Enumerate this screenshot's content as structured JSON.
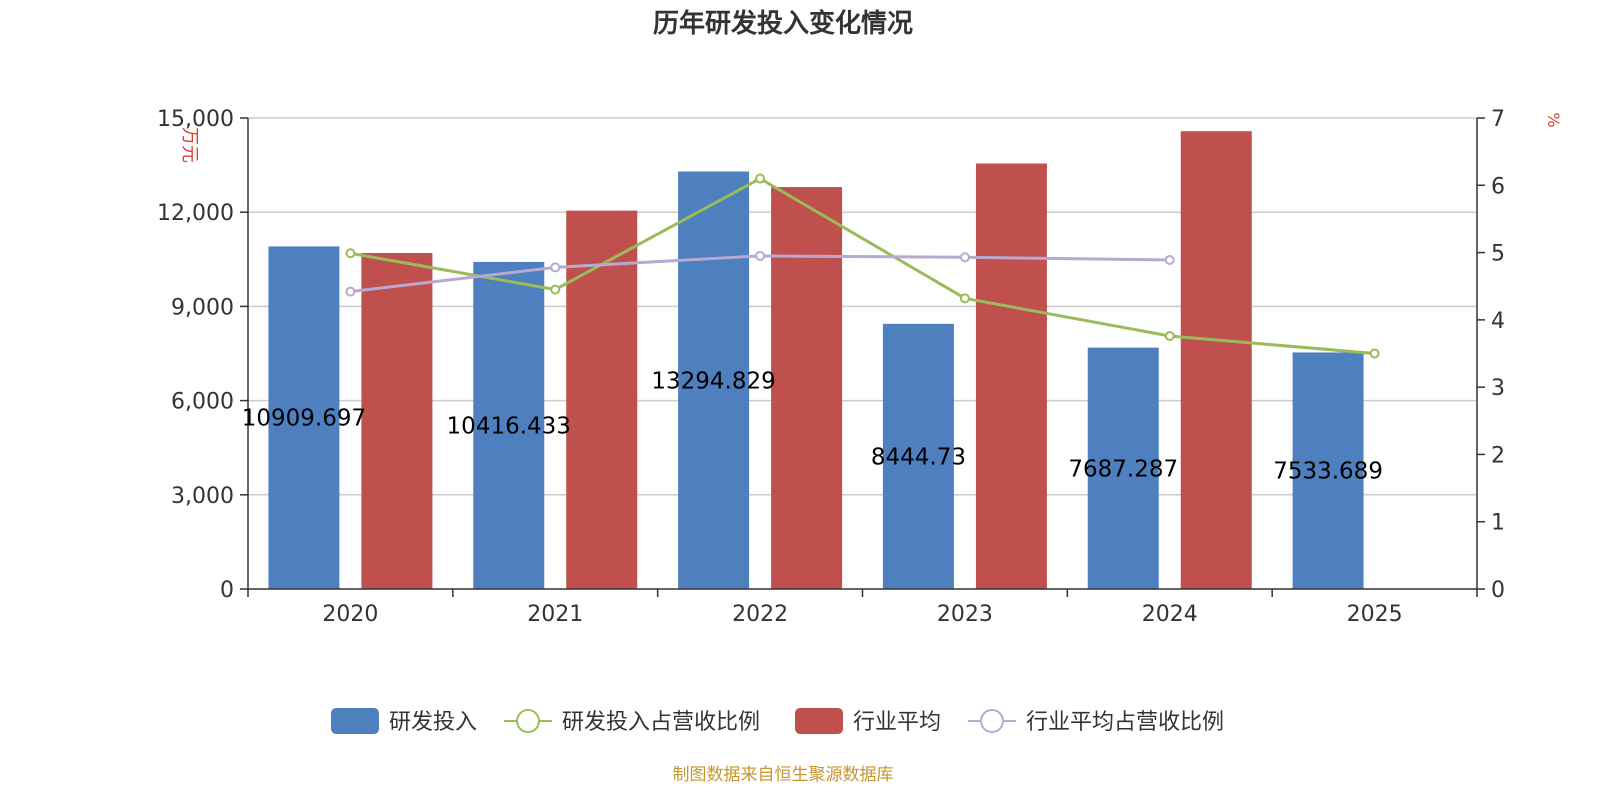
{
  "chart_data": {
    "type": "bar",
    "title": "历年研发投入变化情况",
    "categories": [
      "2020",
      "2021",
      "2022",
      "2023",
      "2024",
      "2025"
    ],
    "y_left": {
      "label": "万元",
      "ylim": [
        0,
        15000
      ],
      "ticks": [
        "0",
        "3,000",
        "6,000",
        "9,000",
        "12,000",
        "15,000"
      ],
      "tick_values": [
        0,
        3000,
        6000,
        9000,
        12000,
        15000
      ]
    },
    "y_right": {
      "label": "%",
      "ylim": [
        0,
        7
      ],
      "ticks": [
        "0",
        "1",
        "2",
        "3",
        "4",
        "5",
        "6",
        "7"
      ],
      "tick_values": [
        0,
        1,
        2,
        3,
        4,
        5,
        6,
        7
      ]
    },
    "series": [
      {
        "name": "研发投入",
        "kind": "bar",
        "axis": "left",
        "color": "#4e7fbe",
        "values": [
          10909.697,
          10416.433,
          13294.829,
          8444.73,
          7687.287,
          7533.689
        ],
        "labels": [
          "10909.697",
          "10416.433",
          "13294.829",
          "8444.73",
          "7687.287",
          "7533.689"
        ]
      },
      {
        "name": "研发投入占营收比例",
        "kind": "line",
        "axis": "right",
        "color": "#9bbb59",
        "values": [
          4.99,
          4.45,
          6.1,
          4.32,
          3.76,
          3.5
        ]
      },
      {
        "name": "行业平均",
        "kind": "bar",
        "axis": "left",
        "color": "#c0504d",
        "values": [
          10700,
          12050,
          12800,
          13550,
          14580,
          null
        ]
      },
      {
        "name": "行业平均占营收比例",
        "kind": "line",
        "axis": "right",
        "color": "#b8a9d0",
        "values": [
          4.42,
          4.78,
          4.95,
          4.93,
          4.89,
          null
        ]
      }
    ],
    "grid": true,
    "legend_position": "bottom-center",
    "source": "制图数据来自恒生聚源数据库"
  },
  "colors": {
    "axis_label": "#e03c31",
    "grid": "#cccccc",
    "axis": "#333333"
  }
}
